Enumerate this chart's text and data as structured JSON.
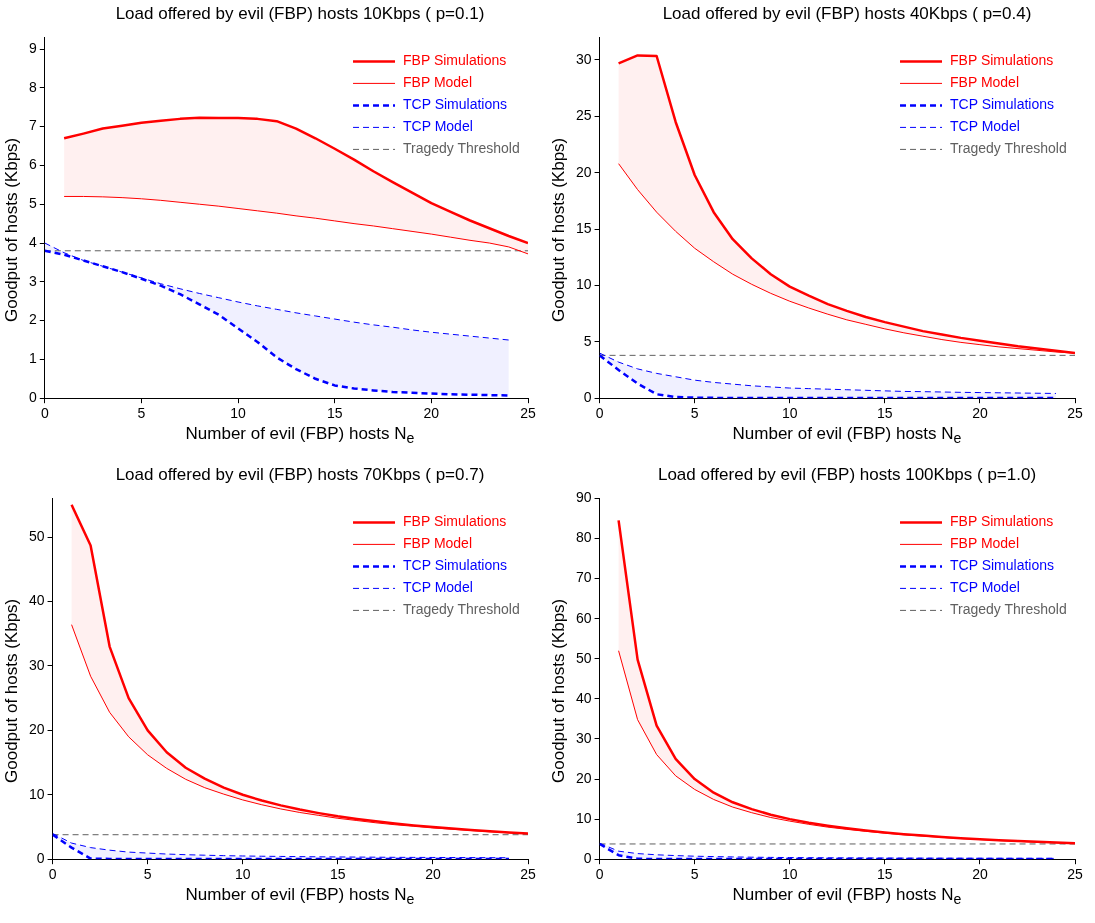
{
  "chart_data": [
    {
      "type": "line",
      "title": "Load offered by evil (FBP) hosts  10Kbps ( p=0.1)",
      "xlabel": "Number of evil (FBP) hosts  N$_{e}$",
      "ylabel": "Goodput of hosts (Kbps)",
      "xlim": [
        0,
        25
      ],
      "xticks": [
        0,
        5,
        10,
        15,
        20,
        25
      ],
      "ylim": [
        0,
        9.3
      ],
      "yticks": [
        0,
        1,
        2,
        3,
        4,
        5,
        6,
        7,
        8,
        9
      ],
      "grid": false,
      "legend": "top right",
      "marker": "none",
      "series": [
        {
          "name": "FBP Simulations",
          "color": "#ff0000",
          "line_style": "solid",
          "x": [
            1,
            2,
            3,
            4,
            5,
            6,
            7,
            8,
            9,
            10,
            11,
            12,
            13,
            14,
            15,
            16,
            17,
            18,
            19,
            20,
            21,
            22,
            23,
            24,
            25
          ],
          "values": [
            6.7,
            6.82,
            6.95,
            7.02,
            7.1,
            7.15,
            7.2,
            7.23,
            7.22,
            7.22,
            7.2,
            7.14,
            6.95,
            6.7,
            6.43,
            6.15,
            5.85,
            5.57,
            5.3,
            5.03,
            4.8,
            4.58,
            4.38,
            4.18,
            4.0
          ],
          "lower": [
            5.2,
            5.2,
            5.19,
            5.17,
            5.14,
            5.1,
            5.05,
            5.0,
            4.95,
            4.89,
            4.83,
            4.77,
            4.7,
            4.64,
            4.57,
            4.5,
            4.44,
            4.37,
            4.3,
            4.23,
            4.15,
            4.07,
            4.0,
            3.9,
            3.72
          ],
          "upper": [
            6.7,
            6.82,
            6.95,
            7.02,
            7.1,
            7.15,
            7.2,
            7.23,
            7.22,
            7.22,
            7.2,
            7.14,
            6.95,
            6.7,
            6.43,
            6.15,
            5.85,
            5.57,
            5.3,
            5.03,
            4.8,
            4.58,
            4.38,
            4.18,
            4.0
          ]
        },
        {
          "name": "FBP Model",
          "color": "#ff0000",
          "line_style": "solid",
          "x": [
            1,
            2,
            3,
            4,
            5,
            6,
            7,
            8,
            9,
            10,
            11,
            12,
            13,
            14,
            15,
            16,
            17,
            18,
            19,
            20,
            21,
            22,
            23,
            24,
            25
          ],
          "values": [
            5.2,
            5.2,
            5.19,
            5.17,
            5.14,
            5.1,
            5.05,
            5.0,
            4.95,
            4.89,
            4.83,
            4.77,
            4.7,
            4.64,
            4.57,
            4.5,
            4.44,
            4.37,
            4.3,
            4.23,
            4.15,
            4.07,
            4.0,
            3.9,
            3.72
          ]
        },
        {
          "name": "TCP Simulations",
          "color": "#0000ff",
          "line_style": "dashed",
          "x": [
            0,
            1,
            2,
            3,
            4,
            5,
            6,
            7,
            8,
            9,
            10,
            11,
            12,
            13,
            14,
            15,
            16,
            17,
            18,
            19,
            20,
            21,
            22,
            23,
            24
          ],
          "values": [
            3.8,
            3.7,
            3.55,
            3.4,
            3.25,
            3.08,
            2.9,
            2.68,
            2.42,
            2.15,
            1.8,
            1.45,
            1.05,
            0.75,
            0.5,
            0.33,
            0.25,
            0.2,
            0.16,
            0.14,
            0.12,
            0.1,
            0.09,
            0.08,
            0.07
          ],
          "lower": [
            3.8,
            3.7,
            3.55,
            3.4,
            3.25,
            3.08,
            2.9,
            2.68,
            2.42,
            2.15,
            1.8,
            1.45,
            1.05,
            0.75,
            0.5,
            0.33,
            0.25,
            0.2,
            0.16,
            0.14,
            0.12,
            0.1,
            0.09,
            0.08,
            0.07
          ],
          "upper": [
            4.0,
            3.75,
            3.55,
            3.4,
            3.25,
            3.1,
            2.95,
            2.82,
            2.7,
            2.59,
            2.48,
            2.38,
            2.29,
            2.2,
            2.12,
            2.04,
            1.96,
            1.89,
            1.83,
            1.76,
            1.7,
            1.65,
            1.6,
            1.55,
            1.5
          ]
        },
        {
          "name": "TCP Model",
          "color": "#0000ff",
          "line_style": "dashed",
          "x": [
            0,
            1,
            2,
            3,
            4,
            5,
            6,
            7,
            8,
            9,
            10,
            11,
            12,
            13,
            14,
            15,
            16,
            17,
            18,
            19,
            20,
            21,
            22,
            23,
            24
          ],
          "values": [
            4.0,
            3.75,
            3.55,
            3.4,
            3.25,
            3.1,
            2.95,
            2.82,
            2.7,
            2.59,
            2.48,
            2.38,
            2.29,
            2.2,
            2.12,
            2.04,
            1.96,
            1.89,
            1.83,
            1.76,
            1.7,
            1.65,
            1.6,
            1.55,
            1.5
          ]
        }
      ],
      "ref_lines": [
        {
          "axis": "y",
          "value": 3.8,
          "label": "Tragedy Threshold",
          "color": "#606060",
          "line_style": "dashed"
        }
      ]
    },
    {
      "type": "line",
      "title": "Load offered by evil (FBP) hosts  40Kbps ( p=0.4)",
      "xlabel": "Number of evil (FBP) hosts  N$_{e}$",
      "ylabel": "Goodput of hosts (Kbps)",
      "xlim": [
        0,
        25
      ],
      "xticks": [
        0,
        5,
        10,
        15,
        20,
        25
      ],
      "ylim": [
        0,
        32
      ],
      "yticks": [
        0,
        5,
        10,
        15,
        20,
        25,
        30
      ],
      "grid": false,
      "legend": "top right",
      "marker": "none",
      "series": [
        {
          "name": "FBP Simulations",
          "color": "#ff0000",
          "line_style": "solid",
          "x": [
            1,
            2,
            3,
            4,
            5,
            6,
            7,
            8,
            9,
            10,
            11,
            12,
            13,
            14,
            15,
            16,
            17,
            18,
            19,
            20,
            21,
            22,
            23,
            24,
            25
          ],
          "values": [
            29.7,
            30.4,
            30.35,
            24.5,
            19.8,
            16.5,
            14.1,
            12.4,
            11.0,
            9.9,
            9.1,
            8.35,
            7.75,
            7.2,
            6.75,
            6.35,
            5.95,
            5.65,
            5.35,
            5.1,
            4.85,
            4.6,
            4.4,
            4.2,
            4.0
          ],
          "lower": [
            20.8,
            18.5,
            16.5,
            14.8,
            13.3,
            12.1,
            11.0,
            10.1,
            9.3,
            8.6,
            8.0,
            7.45,
            6.95,
            6.55,
            6.15,
            5.8,
            5.5,
            5.2,
            4.95,
            4.75,
            4.55,
            4.4,
            4.25,
            4.1,
            4.0
          ],
          "upper": [
            29.7,
            30.4,
            30.35,
            24.5,
            19.8,
            16.5,
            14.1,
            12.4,
            11.0,
            9.9,
            9.1,
            8.35,
            7.75,
            7.2,
            6.75,
            6.35,
            5.95,
            5.65,
            5.35,
            5.1,
            4.85,
            4.6,
            4.4,
            4.2,
            4.0
          ]
        },
        {
          "name": "FBP Model",
          "color": "#ff0000",
          "line_style": "solid",
          "x": [
            1,
            2,
            3,
            4,
            5,
            6,
            7,
            8,
            9,
            10,
            11,
            12,
            13,
            14,
            15,
            16,
            17,
            18,
            19,
            20,
            21,
            22,
            23,
            24,
            25
          ],
          "values": [
            20.8,
            18.5,
            16.5,
            14.8,
            13.3,
            12.1,
            11.0,
            10.1,
            9.3,
            8.6,
            8.0,
            7.45,
            6.95,
            6.55,
            6.15,
            5.8,
            5.5,
            5.2,
            4.95,
            4.75,
            4.55,
            4.4,
            4.25,
            4.1,
            4.0
          ]
        },
        {
          "name": "TCP Simulations",
          "color": "#0000ff",
          "line_style": "dashed",
          "x": [
            0,
            1,
            2,
            3,
            4,
            5,
            6,
            7,
            8,
            9,
            10,
            11,
            12,
            13,
            14,
            15,
            16,
            17,
            18,
            19,
            20,
            21,
            22,
            23,
            24
          ],
          "values": [
            3.8,
            2.5,
            1.3,
            0.35,
            0.1,
            0.05,
            0.03,
            0.02,
            0.02,
            0.02,
            0.02,
            0.02,
            0.02,
            0.02,
            0.02,
            0.02,
            0.02,
            0.02,
            0.02,
            0.02,
            0.02,
            0.02,
            0.02,
            0.02,
            0.02
          ],
          "lower": [
            3.8,
            2.5,
            1.3,
            0.35,
            0.1,
            0.05,
            0.03,
            0.02,
            0.02,
            0.02,
            0.02,
            0.02,
            0.02,
            0.02,
            0.02,
            0.02,
            0.02,
            0.02,
            0.02,
            0.02,
            0.02,
            0.02,
            0.02,
            0.02,
            0.02
          ],
          "upper": [
            4.0,
            3.2,
            2.6,
            2.2,
            1.9,
            1.6,
            1.4,
            1.25,
            1.1,
            1.0,
            0.9,
            0.85,
            0.8,
            0.75,
            0.7,
            0.65,
            0.6,
            0.58,
            0.55,
            0.52,
            0.5,
            0.48,
            0.46,
            0.44,
            0.42
          ]
        },
        {
          "name": "TCP Model",
          "color": "#0000ff",
          "line_style": "dashed",
          "x": [
            0,
            1,
            2,
            3,
            4,
            5,
            6,
            7,
            8,
            9,
            10,
            11,
            12,
            13,
            14,
            15,
            16,
            17,
            18,
            19,
            20,
            21,
            22,
            23,
            24
          ],
          "values": [
            4.0,
            3.2,
            2.6,
            2.2,
            1.9,
            1.6,
            1.4,
            1.25,
            1.1,
            1.0,
            0.9,
            0.85,
            0.8,
            0.75,
            0.7,
            0.65,
            0.6,
            0.58,
            0.55,
            0.52,
            0.5,
            0.48,
            0.46,
            0.44,
            0.42
          ]
        }
      ],
      "ref_lines": [
        {
          "axis": "y",
          "value": 3.8,
          "label": "Tragedy Threshold",
          "color": "#606060",
          "line_style": "dashed"
        }
      ]
    },
    {
      "type": "line",
      "title": "Load offered by evil (FBP) hosts  70Kbps ( p=0.7)",
      "xlabel": "Number of evil (FBP) hosts  N$_{e}$",
      "ylabel": "Goodput of hosts (Kbps)",
      "xlim": [
        0,
        25
      ],
      "xticks": [
        0,
        5,
        10,
        15,
        20,
        25
      ],
      "ylim": [
        0,
        56
      ],
      "yticks": [
        0,
        10,
        20,
        30,
        40,
        50
      ],
      "grid": false,
      "legend": "top right",
      "marker": "none",
      "series": [
        {
          "name": "FBP Simulations",
          "color": "#ff0000",
          "line_style": "solid",
          "x": [
            1,
            2,
            3,
            4,
            5,
            6,
            7,
            8,
            9,
            10,
            11,
            12,
            13,
            14,
            15,
            16,
            17,
            18,
            19,
            20,
            21,
            22,
            23,
            24,
            25
          ],
          "values": [
            55,
            48.7,
            33,
            25,
            20,
            16.6,
            14.2,
            12.5,
            11.1,
            10.0,
            9.1,
            8.35,
            7.7,
            7.15,
            6.65,
            6.25,
            5.9,
            5.55,
            5.25,
            5.0,
            4.75,
            4.55,
            4.35,
            4.15,
            4.0
          ],
          "lower": [
            36.4,
            28.4,
            22.8,
            19,
            16.2,
            14.1,
            12.4,
            11.1,
            10.1,
            9.2,
            8.45,
            7.8,
            7.25,
            6.8,
            6.35,
            6.0,
            5.65,
            5.35,
            5.1,
            4.85,
            4.65,
            4.45,
            4.25,
            4.1,
            3.95
          ],
          "upper": [
            55,
            48.7,
            33,
            25,
            20,
            16.6,
            14.2,
            12.5,
            11.1,
            10.0,
            9.1,
            8.35,
            7.7,
            7.15,
            6.65,
            6.25,
            5.9,
            5.55,
            5.25,
            5.0,
            4.75,
            4.55,
            4.35,
            4.15,
            4.0
          ]
        },
        {
          "name": "FBP Model",
          "color": "#ff0000",
          "line_style": "solid",
          "x": [
            1,
            2,
            3,
            4,
            5,
            6,
            7,
            8,
            9,
            10,
            11,
            12,
            13,
            14,
            15,
            16,
            17,
            18,
            19,
            20,
            21,
            22,
            23,
            24,
            25
          ],
          "values": [
            36.4,
            28.4,
            22.8,
            19,
            16.2,
            14.1,
            12.4,
            11.1,
            10.1,
            9.2,
            8.45,
            7.8,
            7.25,
            6.8,
            6.35,
            6.0,
            5.65,
            5.35,
            5.1,
            4.85,
            4.65,
            4.45,
            4.25,
            4.1,
            3.95
          ]
        },
        {
          "name": "TCP Simulations",
          "color": "#0000ff",
          "line_style": "dashed",
          "x": [
            0,
            1,
            2,
            3,
            4,
            5,
            6,
            7,
            8,
            9,
            10,
            11,
            12,
            13,
            14,
            15,
            16,
            17,
            18,
            19,
            20,
            21,
            22,
            23,
            24
          ],
          "values": [
            3.8,
            1.8,
            0.1,
            0.05,
            0.05,
            0.05,
            0.05,
            0.05,
            0.05,
            0.05,
            0.05,
            0.05,
            0.05,
            0.05,
            0.05,
            0.05,
            0.05,
            0.05,
            0.05,
            0.05,
            0.05,
            0.05,
            0.05,
            0.05,
            0.05
          ],
          "lower": [
            3.8,
            1.8,
            0.1,
            0.05,
            0.05,
            0.05,
            0.05,
            0.05,
            0.05,
            0.05,
            0.05,
            0.05,
            0.05,
            0.05,
            0.05,
            0.05,
            0.05,
            0.05,
            0.05,
            0.05,
            0.05,
            0.05,
            0.05,
            0.05,
            0.05
          ],
          "upper": [
            4.0,
            2.5,
            1.8,
            1.4,
            1.1,
            0.95,
            0.8,
            0.7,
            0.62,
            0.55,
            0.5,
            0.46,
            0.43,
            0.4,
            0.37,
            0.35,
            0.33,
            0.31,
            0.29,
            0.28,
            0.27,
            0.26,
            0.25,
            0.24,
            0.23
          ]
        },
        {
          "name": "TCP Model",
          "color": "#0000ff",
          "line_style": "dashed",
          "x": [
            0,
            1,
            2,
            3,
            4,
            5,
            6,
            7,
            8,
            9,
            10,
            11,
            12,
            13,
            14,
            15,
            16,
            17,
            18,
            19,
            20,
            21,
            22,
            23,
            24
          ],
          "values": [
            4.0,
            2.5,
            1.8,
            1.4,
            1.1,
            0.95,
            0.8,
            0.7,
            0.62,
            0.55,
            0.5,
            0.46,
            0.43,
            0.4,
            0.37,
            0.35,
            0.33,
            0.31,
            0.29,
            0.28,
            0.27,
            0.26,
            0.25,
            0.24,
            0.23
          ]
        }
      ],
      "ref_lines": [
        {
          "axis": "y",
          "value": 3.8,
          "label": "Tragedy Threshold",
          "color": "#606060",
          "line_style": "dashed"
        }
      ]
    },
    {
      "type": "line",
      "title": "Load offered by evil (FBP) hosts  100Kbps ( p=1.0)",
      "xlabel": "Number of evil (FBP) hosts  N$_{e}$",
      "ylabel": "Goodput of hosts (Kbps)",
      "xlim": [
        0,
        25
      ],
      "xticks": [
        0,
        5,
        10,
        15,
        20,
        25
      ],
      "ylim": [
        0,
        90
      ],
      "yticks": [
        0,
        10,
        20,
        30,
        40,
        50,
        60,
        70,
        80,
        90
      ],
      "grid": false,
      "legend": "top right",
      "marker": "none",
      "series": [
        {
          "name": "FBP Simulations",
          "color": "#ff0000",
          "line_style": "solid",
          "x": [
            1,
            2,
            3,
            4,
            5,
            6,
            7,
            8,
            9,
            10,
            11,
            12,
            13,
            14,
            15,
            16,
            17,
            18,
            19,
            20,
            21,
            22,
            23,
            24,
            25
          ],
          "values": [
            84.5,
            49.8,
            33.3,
            25,
            20,
            16.6,
            14.2,
            12.5,
            11.1,
            10,
            9.1,
            8.35,
            7.7,
            7.15,
            6.65,
            6.25,
            5.9,
            5.55,
            5.25,
            5.0,
            4.75,
            4.55,
            4.35,
            4.15,
            4.0
          ],
          "lower": [
            52,
            34.8,
            26.1,
            20.8,
            17.4,
            14.9,
            13.0,
            11.6,
            10.4,
            9.5,
            8.7,
            8.0,
            7.45,
            6.95,
            6.5,
            6.1,
            5.75,
            5.45,
            5.15,
            4.9,
            4.65,
            4.45,
            4.25,
            4.1,
            3.95
          ],
          "upper": [
            84.5,
            49.8,
            33.3,
            25,
            20,
            16.6,
            14.2,
            12.5,
            11.1,
            10,
            9.1,
            8.35,
            7.7,
            7.15,
            6.65,
            6.25,
            5.9,
            5.55,
            5.25,
            5.0,
            4.75,
            4.55,
            4.35,
            4.15,
            4.0
          ]
        },
        {
          "name": "FBP Model",
          "color": "#ff0000",
          "line_style": "solid",
          "x": [
            1,
            2,
            3,
            4,
            5,
            6,
            7,
            8,
            9,
            10,
            11,
            12,
            13,
            14,
            15,
            16,
            17,
            18,
            19,
            20,
            21,
            22,
            23,
            24,
            25
          ],
          "values": [
            52,
            34.8,
            26.1,
            20.8,
            17.4,
            14.9,
            13.0,
            11.6,
            10.4,
            9.5,
            8.7,
            8.0,
            7.45,
            6.95,
            6.5,
            6.1,
            5.75,
            5.45,
            5.15,
            4.9,
            4.65,
            4.45,
            4.25,
            4.1,
            3.95
          ]
        },
        {
          "name": "TCP Simulations",
          "color": "#0000ff",
          "line_style": "dashed",
          "x": [
            0,
            1,
            2,
            3,
            4,
            5,
            6,
            7,
            8,
            9,
            10,
            11,
            12,
            13,
            14,
            15,
            16,
            17,
            18,
            19,
            20,
            21,
            22,
            23,
            24
          ],
          "values": [
            3.8,
            1.0,
            0.1,
            0.05,
            0.05,
            0.05,
            0.05,
            0.05,
            0.05,
            0.05,
            0.05,
            0.05,
            0.05,
            0.05,
            0.05,
            0.05,
            0.05,
            0.05,
            0.05,
            0.05,
            0.05,
            0.05,
            0.05,
            0.05,
            0.05
          ],
          "lower": [
            3.8,
            1.0,
            0.1,
            0.05,
            0.05,
            0.05,
            0.05,
            0.05,
            0.05,
            0.05,
            0.05,
            0.05,
            0.05,
            0.05,
            0.05,
            0.05,
            0.05,
            0.05,
            0.05,
            0.05,
            0.05,
            0.05,
            0.05,
            0.05,
            0.05
          ],
          "upper": [
            4.0,
            2.0,
            1.4,
            1.1,
            0.9,
            0.75,
            0.65,
            0.57,
            0.5,
            0.45,
            0.41,
            0.38,
            0.35,
            0.33,
            0.31,
            0.29,
            0.27,
            0.26,
            0.25,
            0.24,
            0.23,
            0.22,
            0.21,
            0.2,
            0.2
          ]
        },
        {
          "name": "TCP Model",
          "color": "#0000ff",
          "line_style": "dashed",
          "x": [
            0,
            1,
            2,
            3,
            4,
            5,
            6,
            7,
            8,
            9,
            10,
            11,
            12,
            13,
            14,
            15,
            16,
            17,
            18,
            19,
            20,
            21,
            22,
            23,
            24
          ],
          "values": [
            4.0,
            2.0,
            1.4,
            1.1,
            0.9,
            0.75,
            0.65,
            0.57,
            0.5,
            0.45,
            0.41,
            0.38,
            0.35,
            0.33,
            0.31,
            0.29,
            0.27,
            0.26,
            0.25,
            0.24,
            0.23,
            0.22,
            0.21,
            0.2,
            0.2
          ]
        }
      ],
      "ref_lines": [
        {
          "axis": "y",
          "value": 3.8,
          "label": "Tragedy Threshold",
          "color": "#606060",
          "line_style": "dashed"
        }
      ]
    }
  ]
}
